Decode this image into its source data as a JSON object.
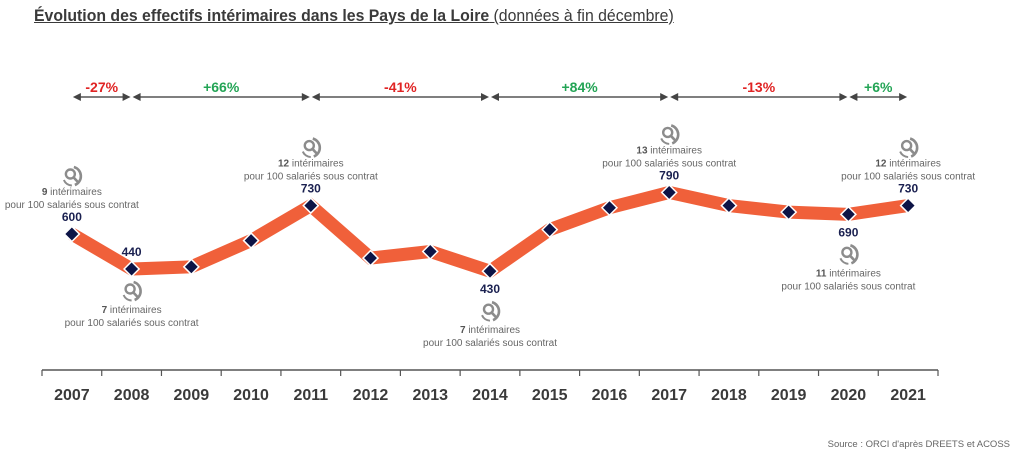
{
  "chart_data": {
    "type": "line",
    "title": "Évolution des effectifs intérimaires dans les Pays de la Loire",
    "subtitle": "(données à fin décembre)",
    "xlabel": "",
    "ylabel": "",
    "categories": [
      "2007",
      "2008",
      "2009",
      "2010",
      "2011",
      "2012",
      "2013",
      "2014",
      "2015",
      "2016",
      "2017",
      "2018",
      "2019",
      "2020",
      "2021"
    ],
    "series": [
      {
        "name": "Effectifs intérimaires",
        "values": [
          600,
          440,
          450,
          570,
          730,
          490,
          520,
          430,
          620,
          720,
          790,
          730,
          700,
          690,
          730
        ],
        "color": "#f0603a",
        "marker_color": "#0d1446"
      }
    ],
    "ylim": [
      300,
      900
    ],
    "grid": false,
    "point_labels": [
      {
        "year": "2007",
        "value": "600",
        "position": "above"
      },
      {
        "year": "2008",
        "value": "440",
        "position": "above"
      },
      {
        "year": "2011",
        "value": "730",
        "position": "above"
      },
      {
        "year": "2014",
        "value": "430",
        "position": "below"
      },
      {
        "year": "2017",
        "value": "790",
        "position": "above"
      },
      {
        "year": "2020",
        "value": "690",
        "position": "below"
      },
      {
        "year": "2021",
        "value": "730",
        "position": "above"
      }
    ],
    "annotations": [
      {
        "year": "2007",
        "count": "9",
        "text1": " intérimaires",
        "text2": "pour 100 salariés sous contrat",
        "position": "above"
      },
      {
        "year": "2008",
        "count": "7",
        "text1": " intérimaires",
        "text2": "pour 100 salariés sous contrat",
        "position": "below"
      },
      {
        "year": "2011",
        "count": "12",
        "text1": " intérimaires",
        "text2": "pour 100 salariés sous contrat",
        "position": "above"
      },
      {
        "year": "2014",
        "count": "7",
        "text1": " intérimaires",
        "text2": "pour 100 salariés sous contrat",
        "position": "below"
      },
      {
        "year": "2017",
        "count": "13",
        "text1": " intérimaires",
        "text2": "pour 100 salariés sous contrat",
        "position": "above"
      },
      {
        "year": "2020",
        "count": "11",
        "text1": " intérimaires",
        "text2": "pour 100 salariés sous contrat",
        "position": "below"
      },
      {
        "year": "2021",
        "count": "12",
        "text1": " intérimaires",
        "text2": "pour 100 salariés sous contrat",
        "position": "above"
      }
    ],
    "period_changes": [
      {
        "from": "2007",
        "to": "2008",
        "label": "-27%",
        "color": "#e02424"
      },
      {
        "from": "2008",
        "to": "2011",
        "label": "+66%",
        "color": "#23a455"
      },
      {
        "from": "2011",
        "to": "2014",
        "label": "-41%",
        "color": "#e02424"
      },
      {
        "from": "2014",
        "to": "2017",
        "label": "+84%",
        "color": "#23a455"
      },
      {
        "from": "2017",
        "to": "2020",
        "label": "-13%",
        "color": "#e02424"
      },
      {
        "from": "2020",
        "to": "2021",
        "label": "+6%",
        "color": "#23a455"
      }
    ]
  },
  "header": {
    "title_main": "Évolution des effectifs intérimaires dans les Pays de la Loire",
    "title_sub": " (données à fin décembre)"
  },
  "footer": {
    "source": "Source : ORCI d'après DREETS et ACOSS"
  },
  "icons": {
    "annotation_icon": "search-person-icon"
  }
}
